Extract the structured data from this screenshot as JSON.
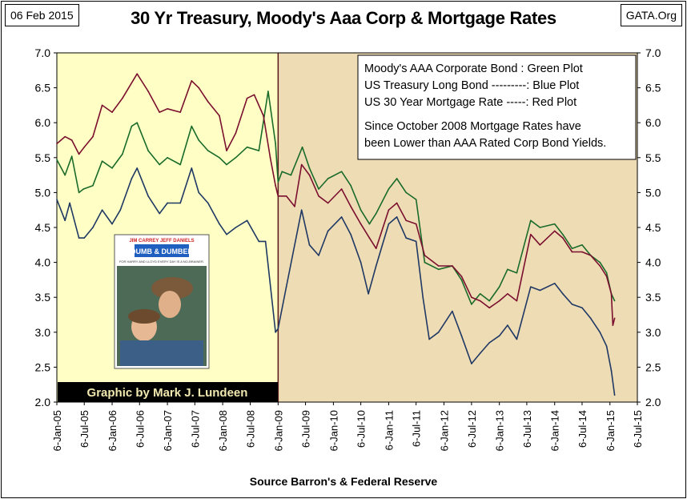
{
  "header": {
    "date": "06 Feb 2015",
    "title": "30 Yr Treasury, Moody's Aaa Corp & Mortgage Rates",
    "brand": "GATA.Org"
  },
  "footer": {
    "source": "Source Barron's & Federal Reserve"
  },
  "legend": {
    "lines": [
      "Moody's AAA Corporate Bond : Green Plot",
      "US Treasury Long Bond ---------: Blue Plot",
      "US 30 Year Mortgage Rate -----:  Red Plot"
    ],
    "note": [
      "Since October 2008 Mortgage Rates have",
      "been Lower than AAA Rated Corp Bond Yields."
    ]
  },
  "inset": {
    "caption": "Graphic by Mark J. Lundeen",
    "poster_actors": [
      "JIM CARREY",
      "JEFF DANIELS"
    ],
    "poster_title": "DUMB & DUMBER",
    "poster_tagline": "FOR HARRY AND LLOYD EVERY DAY IS A NO-BRAINER."
  },
  "colors": {
    "green": "#1a6b2a",
    "blue": "#1f3864",
    "red": "#7a0f2e",
    "region_pre_2009": "#ffffc5",
    "region_post_2009": "#eedcb5",
    "crash_line": "#5a1a1a"
  },
  "chart_data": {
    "type": "line",
    "y_ticks": [
      "7.0",
      "6.5",
      "6.0",
      "5.5",
      "5.0",
      "4.5",
      "4.0",
      "3.5",
      "3.0",
      "2.5",
      "2.0"
    ],
    "x_ticks": [
      "6-Jan-05",
      "6-Jul-05",
      "6-Jan-06",
      "6-Jul-06",
      "6-Jan-07",
      "6-Jul-07",
      "6-Jan-08",
      "6-Jul-08",
      "6-Jan-09",
      "6-Jul-09",
      "6-Jan-10",
      "6-Jul-10",
      "6-Jan-11",
      "6-Jul-11",
      "6-Jan-12",
      "6-Jul-12",
      "6-Jan-13",
      "6-Jul-13",
      "6-Jan-14",
      "6-Jul-14",
      "6-Jan-15",
      "6-Jul-15"
    ],
    "ylim": [
      2.0,
      7.0
    ],
    "xlim": [
      "2005-01-06",
      "2015-07-06"
    ],
    "shading": [
      {
        "from": "2005-01-06",
        "to": "2009-01-06",
        "color": "#ffffc5"
      },
      {
        "from": "2009-01-06",
        "to": "2015-07-06",
        "color": "#eedcb5"
      }
    ],
    "series": [
      {
        "name": "Moody's AAA Corporate Bond",
        "color": "#1a6b2a",
        "points": [
          [
            "2005-01-06",
            5.47
          ],
          [
            "2005-03-01",
            5.25
          ],
          [
            "2005-04-15",
            5.52
          ],
          [
            "2005-06-01",
            5.0
          ],
          [
            "2005-07-01",
            5.05
          ],
          [
            "2005-09-01",
            5.1
          ],
          [
            "2005-11-01",
            5.45
          ],
          [
            "2006-01-06",
            5.35
          ],
          [
            "2006-03-15",
            5.55
          ],
          [
            "2006-05-15",
            5.95
          ],
          [
            "2006-06-20",
            6.0
          ],
          [
            "2006-09-01",
            5.6
          ],
          [
            "2006-11-15",
            5.4
          ],
          [
            "2007-01-06",
            5.5
          ],
          [
            "2007-04-01",
            5.4
          ],
          [
            "2007-06-15",
            5.95
          ],
          [
            "2007-08-01",
            5.75
          ],
          [
            "2007-10-01",
            5.6
          ],
          [
            "2007-12-15",
            5.5
          ],
          [
            "2008-02-01",
            5.4
          ],
          [
            "2008-04-01",
            5.5
          ],
          [
            "2008-06-15",
            5.65
          ],
          [
            "2008-09-01",
            5.6
          ],
          [
            "2008-11-01",
            6.45
          ],
          [
            "2008-12-20",
            5.7
          ],
          [
            "2009-01-06",
            5.15
          ],
          [
            "2009-02-01",
            5.3
          ],
          [
            "2009-04-01",
            5.25
          ],
          [
            "2009-06-15",
            5.65
          ],
          [
            "2009-08-01",
            5.35
          ],
          [
            "2009-10-01",
            5.05
          ],
          [
            "2009-12-01",
            5.2
          ],
          [
            "2010-03-01",
            5.3
          ],
          [
            "2010-05-01",
            5.1
          ],
          [
            "2010-07-06",
            4.75
          ],
          [
            "2010-09-01",
            4.55
          ],
          [
            "2010-10-15",
            4.7
          ],
          [
            "2011-01-06",
            5.05
          ],
          [
            "2011-03-01",
            5.2
          ],
          [
            "2011-05-01",
            5.0
          ],
          [
            "2011-07-06",
            4.9
          ],
          [
            "2011-09-01",
            4.0
          ],
          [
            "2011-12-01",
            3.9
          ],
          [
            "2012-03-01",
            3.95
          ],
          [
            "2012-05-01",
            3.75
          ],
          [
            "2012-07-06",
            3.4
          ],
          [
            "2012-09-01",
            3.55
          ],
          [
            "2012-11-01",
            3.45
          ],
          [
            "2013-01-06",
            3.65
          ],
          [
            "2013-03-01",
            3.9
          ],
          [
            "2013-05-01",
            3.85
          ],
          [
            "2013-08-01",
            4.6
          ],
          [
            "2013-10-01",
            4.5
          ],
          [
            "2014-01-06",
            4.55
          ],
          [
            "2014-03-01",
            4.4
          ],
          [
            "2014-05-01",
            4.2
          ],
          [
            "2014-07-06",
            4.25
          ],
          [
            "2014-09-01",
            4.1
          ],
          [
            "2014-11-01",
            4.0
          ],
          [
            "2014-12-15",
            3.85
          ],
          [
            "2015-01-15",
            3.55
          ],
          [
            "2015-02-06",
            3.45
          ]
        ]
      },
      {
        "name": "US Treasury Long Bond",
        "color": "#1f3864",
        "points": [
          [
            "2005-01-06",
            4.9
          ],
          [
            "2005-03-01",
            4.6
          ],
          [
            "2005-04-01",
            4.85
          ],
          [
            "2005-06-01",
            4.35
          ],
          [
            "2005-07-06",
            4.35
          ],
          [
            "2005-09-01",
            4.5
          ],
          [
            "2005-11-01",
            4.75
          ],
          [
            "2006-01-06",
            4.55
          ],
          [
            "2006-03-01",
            4.75
          ],
          [
            "2006-05-15",
            5.2
          ],
          [
            "2006-06-20",
            5.35
          ],
          [
            "2006-09-01",
            4.95
          ],
          [
            "2006-11-15",
            4.7
          ],
          [
            "2007-01-06",
            4.85
          ],
          [
            "2007-04-01",
            4.85
          ],
          [
            "2007-06-15",
            5.35
          ],
          [
            "2007-08-01",
            5.0
          ],
          [
            "2007-10-01",
            4.85
          ],
          [
            "2007-12-15",
            4.55
          ],
          [
            "2008-02-01",
            4.4
          ],
          [
            "2008-04-01",
            4.5
          ],
          [
            "2008-06-15",
            4.6
          ],
          [
            "2008-09-01",
            4.3
          ],
          [
            "2008-10-15",
            4.3
          ],
          [
            "2008-12-20",
            3.0
          ],
          [
            "2009-01-06",
            3.05
          ],
          [
            "2009-03-01",
            3.65
          ],
          [
            "2009-06-10",
            4.75
          ],
          [
            "2009-08-01",
            4.25
          ],
          [
            "2009-10-01",
            4.1
          ],
          [
            "2009-12-01",
            4.45
          ],
          [
            "2010-03-01",
            4.65
          ],
          [
            "2010-05-01",
            4.4
          ],
          [
            "2010-07-06",
            4.0
          ],
          [
            "2010-08-25",
            3.55
          ],
          [
            "2010-10-15",
            3.95
          ],
          [
            "2011-01-06",
            4.55
          ],
          [
            "2011-03-01",
            4.65
          ],
          [
            "2011-05-01",
            4.35
          ],
          [
            "2011-07-06",
            4.3
          ],
          [
            "2011-08-20",
            3.5
          ],
          [
            "2011-10-01",
            2.9
          ],
          [
            "2011-12-01",
            3.0
          ],
          [
            "2012-03-01",
            3.3
          ],
          [
            "2012-05-01",
            2.95
          ],
          [
            "2012-07-06",
            2.55
          ],
          [
            "2012-09-01",
            2.7
          ],
          [
            "2012-11-01",
            2.85
          ],
          [
            "2013-01-06",
            2.95
          ],
          [
            "2013-03-01",
            3.1
          ],
          [
            "2013-05-01",
            2.9
          ],
          [
            "2013-08-01",
            3.65
          ],
          [
            "2013-10-01",
            3.6
          ],
          [
            "2014-01-06",
            3.7
          ],
          [
            "2014-03-01",
            3.55
          ],
          [
            "2014-05-01",
            3.4
          ],
          [
            "2014-07-06",
            3.35
          ],
          [
            "2014-09-01",
            3.2
          ],
          [
            "2014-11-01",
            3.0
          ],
          [
            "2014-12-15",
            2.8
          ],
          [
            "2015-01-15",
            2.45
          ],
          [
            "2015-02-06",
            2.1
          ]
        ]
      },
      {
        "name": "US 30 Year Mortgage Rate",
        "color": "#7a0f2e",
        "points": [
          [
            "2005-01-06",
            5.7
          ],
          [
            "2005-03-01",
            5.8
          ],
          [
            "2005-04-15",
            5.75
          ],
          [
            "2005-06-01",
            5.55
          ],
          [
            "2005-07-06",
            5.65
          ],
          [
            "2005-09-01",
            5.8
          ],
          [
            "2005-11-01",
            6.25
          ],
          [
            "2006-01-06",
            6.15
          ],
          [
            "2006-03-15",
            6.35
          ],
          [
            "2006-06-20",
            6.7
          ],
          [
            "2006-09-01",
            6.45
          ],
          [
            "2006-11-15",
            6.15
          ],
          [
            "2007-01-06",
            6.2
          ],
          [
            "2007-04-01",
            6.15
          ],
          [
            "2007-06-15",
            6.6
          ],
          [
            "2007-08-01",
            6.5
          ],
          [
            "2007-10-01",
            6.3
          ],
          [
            "2007-12-15",
            6.1
          ],
          [
            "2008-02-01",
            5.6
          ],
          [
            "2008-04-01",
            5.85
          ],
          [
            "2008-06-15",
            6.35
          ],
          [
            "2008-08-01",
            6.4
          ],
          [
            "2008-10-01",
            6.1
          ],
          [
            "2008-11-15",
            5.5
          ],
          [
            "2008-12-20",
            5.1
          ],
          [
            "2009-01-06",
            4.95
          ],
          [
            "2009-03-01",
            4.95
          ],
          [
            "2009-04-25",
            4.8
          ],
          [
            "2009-06-10",
            5.4
          ],
          [
            "2009-08-01",
            5.25
          ],
          [
            "2009-10-01",
            4.95
          ],
          [
            "2009-12-01",
            4.85
          ],
          [
            "2010-03-01",
            5.05
          ],
          [
            "2010-05-01",
            4.8
          ],
          [
            "2010-07-06",
            4.55
          ],
          [
            "2010-09-01",
            4.35
          ],
          [
            "2010-10-15",
            4.2
          ],
          [
            "2011-01-06",
            4.75
          ],
          [
            "2011-03-01",
            4.85
          ],
          [
            "2011-05-01",
            4.6
          ],
          [
            "2011-07-06",
            4.55
          ],
          [
            "2011-09-01",
            4.1
          ],
          [
            "2011-12-01",
            3.95
          ],
          [
            "2012-03-01",
            3.95
          ],
          [
            "2012-05-01",
            3.8
          ],
          [
            "2012-07-06",
            3.5
          ],
          [
            "2012-09-01",
            3.45
          ],
          [
            "2012-11-01",
            3.35
          ],
          [
            "2013-01-06",
            3.45
          ],
          [
            "2013-03-01",
            3.55
          ],
          [
            "2013-05-01",
            3.45
          ],
          [
            "2013-08-01",
            4.4
          ],
          [
            "2013-10-01",
            4.25
          ],
          [
            "2014-01-06",
            4.45
          ],
          [
            "2014-03-01",
            4.35
          ],
          [
            "2014-05-01",
            4.15
          ],
          [
            "2014-07-06",
            4.15
          ],
          [
            "2014-09-01",
            4.1
          ],
          [
            "2014-11-01",
            3.95
          ],
          [
            "2014-12-15",
            3.8
          ],
          [
            "2015-01-15",
            3.55
          ],
          [
            "2015-01-25",
            3.1
          ],
          [
            "2015-02-06",
            3.2
          ]
        ]
      }
    ]
  }
}
